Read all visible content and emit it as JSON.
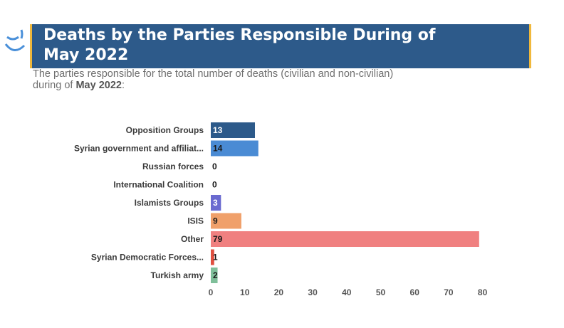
{
  "header": {
    "title_line1": "Deaths by the Parties Responsible During of",
    "title_line2": "May 2022",
    "subtitle_line1": "The parties responsible for the total number of deaths (civilian and non-civilian)",
    "subtitle_prefix": "during of ",
    "subtitle_bold": "May 2022",
    "subtitle_suffix": ":"
  },
  "colors": {
    "title_band": "#2d5a8a",
    "accent": "#f0b83c",
    "logo": "#4a90d9"
  },
  "logo": {
    "icon": "logo-icon"
  },
  "chart_data": {
    "type": "bar",
    "orientation": "horizontal",
    "categories": [
      "Opposition Groups",
      "Syrian government and affiliat...",
      "Russian forces",
      "International Coalition",
      "Islamists Groups",
      "ISIS",
      "Other",
      "Syrian Democratic Forces...",
      "Turkish army"
    ],
    "values": [
      13,
      14,
      0,
      0,
      3,
      9,
      79,
      1,
      2
    ],
    "colors": [
      "#2d5a8a",
      "#4a8bd4",
      "#2d5a8a",
      "#2d5a8a",
      "#6a6ad0",
      "#f0a06a",
      "#f08080",
      "#e05040",
      "#7fbf9a"
    ],
    "value_label_colors": [
      "#ffffff",
      "#1a1a1a",
      "#1a1a1a",
      "#1a1a1a",
      "#ffffff",
      "#1a1a1a",
      "#1a1a1a",
      "#1a1a1a",
      "#1a1a1a"
    ],
    "xlim": [
      0,
      80
    ],
    "xticks": [
      0,
      10,
      20,
      30,
      40,
      50,
      60,
      70,
      80
    ],
    "grid": false,
    "legend": "none"
  }
}
